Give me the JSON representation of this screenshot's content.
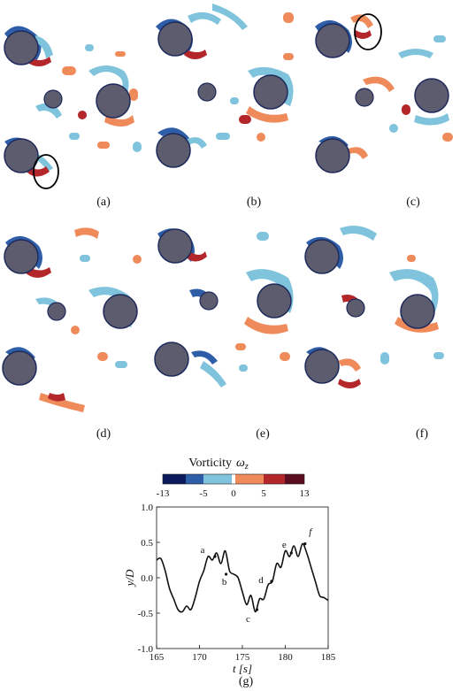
{
  "panels": [
    {
      "id": "a",
      "label": "(a)"
    },
    {
      "id": "b",
      "label": "(b)"
    },
    {
      "id": "c",
      "label": "(c)"
    },
    {
      "id": "d",
      "label": "(d)"
    },
    {
      "id": "e",
      "label": "(e)"
    },
    {
      "id": "f",
      "label": "(f)"
    }
  ],
  "colorbar": {
    "title": "Vorticity",
    "symbol": "ω",
    "subscript": "z",
    "tick_labels": [
      "-13",
      "-5",
      "0",
      "5",
      "13"
    ],
    "colors": [
      "#0b1a5c",
      "#2f5ea8",
      "#7fc3dc",
      "#ffffff",
      "#ef8a5a",
      "#b3262a",
      "#5a0d1f"
    ]
  },
  "chart_data": {
    "type": "line",
    "panel_label": "(g)",
    "xlabel": "t [s]",
    "ylabel": "y/D",
    "xlim": [
      165,
      185
    ],
    "ylim": [
      -1.0,
      1.0
    ],
    "x_ticks": [
      "165",
      "170",
      "175",
      "180",
      "185"
    ],
    "y_ticks": [
      "-1.0",
      "-0.5",
      "0.0",
      "0.5",
      "1.0"
    ],
    "series": [
      {
        "x": [
          165.0,
          165.5,
          166.0,
          166.5,
          167.0,
          167.5,
          168.0,
          168.5,
          169.0,
          169.5,
          170.0,
          170.5,
          171.0,
          171.5,
          172.0,
          172.5,
          173.0,
          173.5,
          174.0,
          174.5,
          175.0,
          175.5,
          176.0,
          176.5,
          177.0,
          177.5,
          178.0,
          178.5,
          179.0,
          179.5,
          180.0,
          180.5,
          181.0,
          181.5,
          182.0,
          182.5,
          183.0,
          183.5,
          184.0,
          184.5,
          185.0
        ],
        "y": [
          0.25,
          0.27,
          0.1,
          -0.15,
          -0.3,
          -0.45,
          -0.48,
          -0.4,
          -0.45,
          -0.28,
          -0.05,
          0.1,
          0.3,
          0.25,
          0.35,
          0.2,
          0.38,
          0.1,
          0.05,
          0.0,
          -0.2,
          -0.38,
          -0.25,
          -0.48,
          -0.3,
          -0.3,
          -0.1,
          -0.05,
          0.2,
          0.15,
          0.38,
          0.3,
          0.45,
          0.3,
          0.48,
          0.35,
          0.15,
          -0.05,
          -0.25,
          -0.28,
          -0.32
        ]
      }
    ],
    "annotations": [
      {
        "text": "a",
        "x": 171.8,
        "y": 0.3
      },
      {
        "text": "b",
        "x": 173.1,
        "y": 0.05
      },
      {
        "text": "c",
        "x": 176.7,
        "y": -0.45
      },
      {
        "text": "d",
        "x": 178.4,
        "y": -0.05
      },
      {
        "text": "e",
        "x": 180.7,
        "y": 0.35
      },
      {
        "text": "f",
        "x": 182.3,
        "y": 0.48
      }
    ]
  }
}
